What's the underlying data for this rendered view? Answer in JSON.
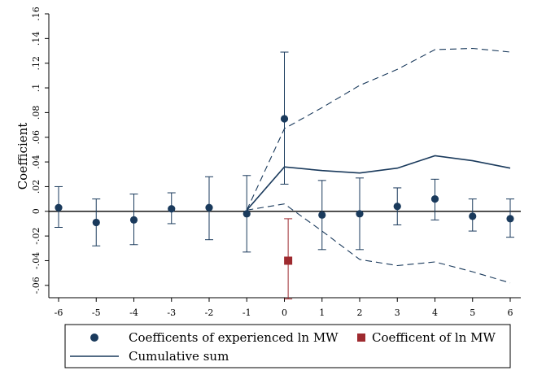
{
  "chart_data": {
    "type": "scatter",
    "title": "",
    "xlabel": "",
    "ylabel": "Coefficient",
    "xlim": [
      -6,
      6
    ],
    "ylim": [
      -0.07,
      0.16
    ],
    "x_ticks": [
      -6,
      -5,
      -4,
      -3,
      -2,
      -1,
      0,
      1,
      2,
      3,
      4,
      5,
      6
    ],
    "x_tick_labels": [
      "-6",
      "-5",
      "-4",
      "-3",
      "-2",
      "-1",
      "0",
      "1",
      "2",
      "3",
      "4",
      "5",
      "6"
    ],
    "y_ticks": [
      -0.06,
      -0.04,
      -0.02,
      0,
      0.02,
      0.04,
      0.06,
      0.08,
      0.1,
      0.12,
      0.14,
      0.16
    ],
    "y_tick_labels": [
      "-.06",
      "-.04",
      "-.02",
      "0",
      ".02",
      ".04",
      ".06",
      ".08",
      ".1",
      ".12",
      ".14",
      ".16"
    ],
    "grid": false,
    "legend_position": "bottom",
    "colors": {
      "navy": "#1a3a5c",
      "maroon": "#9e2a2f",
      "zero_line": "#000000"
    },
    "series": [
      {
        "name": "Coefficents of experienced ln MW",
        "marker": "circle",
        "x": [
          -6,
          -5,
          -4,
          -3,
          -2,
          -1,
          0,
          1,
          2,
          3,
          4,
          5,
          6
        ],
        "y": [
          0.003,
          -0.009,
          -0.007,
          0.002,
          0.003,
          -0.002,
          0.075,
          -0.003,
          -0.002,
          0.004,
          0.01,
          -0.004,
          -0.006
        ],
        "ci_low": [
          -0.013,
          -0.028,
          -0.027,
          -0.01,
          -0.023,
          -0.033,
          0.022,
          -0.031,
          -0.031,
          -0.011,
          -0.007,
          -0.016,
          -0.021
        ],
        "ci_high": [
          0.02,
          0.01,
          0.014,
          0.015,
          0.028,
          0.029,
          0.129,
          0.025,
          0.027,
          0.019,
          0.026,
          0.01,
          0.01
        ]
      },
      {
        "name": "Coefficent of ln MW",
        "marker": "square",
        "x": [
          0.1
        ],
        "y": [
          -0.04
        ],
        "ci_low": [
          -0.071
        ],
        "ci_high": [
          -0.006
        ]
      },
      {
        "name": "Cumulative sum",
        "marker": "line",
        "x": [
          -1,
          0,
          1,
          2,
          3,
          4,
          5,
          6
        ],
        "y": [
          0.001,
          0.036,
          0.033,
          0.031,
          0.035,
          0.045,
          0.041,
          0.035
        ],
        "ci_low": [
          0.001,
          0.006,
          -0.016,
          -0.039,
          -0.044,
          -0.041,
          -0.049,
          -0.058
        ],
        "ci_high": [
          0.001,
          0.067,
          0.084,
          0.102,
          0.115,
          0.131,
          0.132,
          0.129
        ]
      }
    ]
  }
}
